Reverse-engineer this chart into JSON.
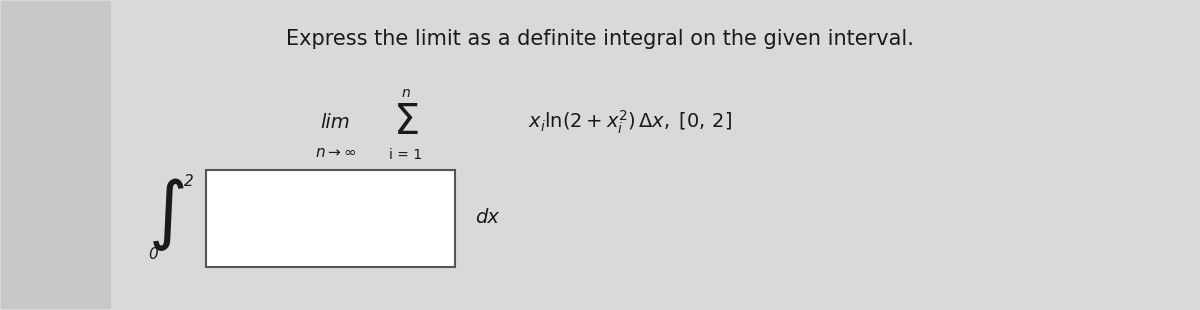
{
  "title": "Express the limit as a definite integral on the given interval.",
  "title_fontsize": 15,
  "title_color": "#1a1a1a",
  "bg_color": "#d9d9d9",
  "left_panel_color": "#c8c8c8",
  "fig_width": 12.0,
  "fig_height": 3.1,
  "lim_text": "lim",
  "n_to_inf": "n→∞",
  "sum_upper": "n",
  "sum_lower": "i = 1",
  "summand": "xᵢ ln(2 + xᵢ²) Δx, [0, 2]",
  "integral_lower": "0",
  "integral_upper": "2",
  "dx_text": "dx",
  "box_color": "#ffffff",
  "text_color": "#1a1a1a"
}
